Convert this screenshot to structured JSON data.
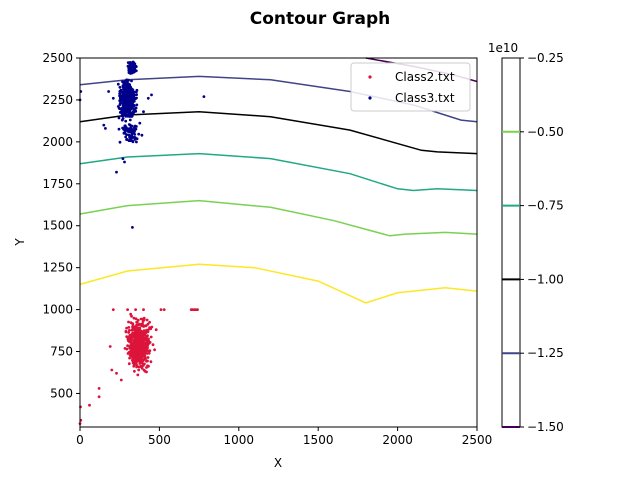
{
  "chart_data": {
    "type": "scatter",
    "title": "Contour Graph",
    "xlabel": "X",
    "ylabel": "Y",
    "xlim": [
      0,
      2500
    ],
    "ylim": [
      300,
      2500
    ],
    "xticks": [
      0,
      500,
      1000,
      1500,
      2000,
      2500
    ],
    "yticks": [
      500,
      750,
      1000,
      1250,
      1500,
      1750,
      2000,
      2250,
      2500
    ],
    "grid": false,
    "legend_position": "top-right",
    "series": [
      {
        "name": "Class2.txt",
        "color": "#dc143c",
        "clusters": [
          {
            "x": [
              270,
              470
            ],
            "y": [
              600,
              1000
            ],
            "count": 420
          },
          {
            "x": [
              300,
              420
            ],
            "y": [
              640,
              880
            ],
            "count": 260
          }
        ],
        "points": [
          {
            "x": 0,
            "y": 320
          },
          {
            "x": 5,
            "y": 340
          },
          {
            "x": 3,
            "y": 420
          },
          {
            "x": 60,
            "y": 430
          },
          {
            "x": 120,
            "y": 480
          },
          {
            "x": 120,
            "y": 530
          },
          {
            "x": 200,
            "y": 640
          },
          {
            "x": 190,
            "y": 780
          },
          {
            "x": 210,
            "y": 1000
          },
          {
            "x": 300,
            "y": 1000
          },
          {
            "x": 350,
            "y": 1000
          },
          {
            "x": 400,
            "y": 1000
          },
          {
            "x": 510,
            "y": 1000
          },
          {
            "x": 530,
            "y": 1000
          },
          {
            "x": 700,
            "y": 1000
          },
          {
            "x": 710,
            "y": 1000
          },
          {
            "x": 720,
            "y": 1000
          },
          {
            "x": 730,
            "y": 1000
          },
          {
            "x": 740,
            "y": 1000
          },
          {
            "x": 480,
            "y": 880
          },
          {
            "x": 470,
            "y": 760
          },
          {
            "x": 230,
            "y": 620
          },
          {
            "x": 260,
            "y": 580
          }
        ]
      },
      {
        "name": "Class3.txt",
        "color": "#00008b",
        "clusters": [
          {
            "x": [
              230,
              370
            ],
            "y": [
              2100,
              2400
            ],
            "count": 420
          },
          {
            "x": [
              290,
              360
            ],
            "y": [
              2390,
              2500
            ],
            "count": 90
          },
          {
            "x": [
              230,
              400
            ],
            "y": [
              1950,
              2150
            ],
            "count": 80
          }
        ],
        "points": [
          {
            "x": 0,
            "y": 2250
          },
          {
            "x": 5,
            "y": 2300
          },
          {
            "x": 150,
            "y": 2100
          },
          {
            "x": 160,
            "y": 2080
          },
          {
            "x": 180,
            "y": 2300
          },
          {
            "x": 210,
            "y": 2260
          },
          {
            "x": 230,
            "y": 1820
          },
          {
            "x": 270,
            "y": 1900
          },
          {
            "x": 280,
            "y": 1880
          },
          {
            "x": 330,
            "y": 1490
          },
          {
            "x": 430,
            "y": 2260
          },
          {
            "x": 450,
            "y": 2280
          },
          {
            "x": 780,
            "y": 2270
          },
          {
            "x": 400,
            "y": 2180
          },
          {
            "x": 390,
            "y": 2040
          }
        ]
      }
    ],
    "contours": {
      "levels": [
        -1.5,
        -1.25,
        -1.0,
        -0.75,
        -0.5,
        -0.25
      ],
      "colors": {
        "-1.5": "#440154",
        "-1.25": "#414487",
        "-1.0": "#2a788e",
        "-0.75": "#22a884",
        "-0.5": "#7ad151",
        "-0.25": "#fde725"
      },
      "lines": [
        {
          "level": -1.5,
          "points": [
            [
              1800,
              2500
            ],
            [
              2100,
              2450
            ],
            [
              2350,
              2400
            ],
            [
              2500,
              2360
            ]
          ]
        },
        {
          "level": -1.25,
          "points": [
            [
              0,
              2340
            ],
            [
              300,
              2370
            ],
            [
              750,
              2390
            ],
            [
              1200,
              2370
            ],
            [
              1700,
              2300
            ],
            [
              2100,
              2220
            ],
            [
              2400,
              2130
            ],
            [
              2500,
              2120
            ]
          ]
        },
        {
          "level": -1.0,
          "points": [
            [
              0,
              2120
            ],
            [
              300,
              2160
            ],
            [
              750,
              2180
            ],
            [
              1200,
              2150
            ],
            [
              1700,
              2070
            ],
            [
              2150,
              1950
            ],
            [
              2250,
              1940
            ],
            [
              2500,
              1930
            ]
          ]
        },
        {
          "level": -0.75,
          "points": [
            [
              0,
              1870
            ],
            [
              300,
              1910
            ],
            [
              750,
              1930
            ],
            [
              1200,
              1900
            ],
            [
              1700,
              1810
            ],
            [
              2000,
              1720
            ],
            [
              2100,
              1710
            ],
            [
              2250,
              1720
            ],
            [
              2500,
              1710
            ]
          ]
        },
        {
          "level": -0.5,
          "points": [
            [
              0,
              1570
            ],
            [
              300,
              1620
            ],
            [
              750,
              1650
            ],
            [
              1200,
              1610
            ],
            [
              1600,
              1530
            ],
            [
              1950,
              1440
            ],
            [
              2050,
              1450
            ],
            [
              2300,
              1460
            ],
            [
              2500,
              1450
            ]
          ]
        },
        {
          "level": -0.25,
          "points": [
            [
              0,
              1150
            ],
            [
              300,
              1230
            ],
            [
              750,
              1270
            ],
            [
              1100,
              1250
            ],
            [
              1500,
              1170
            ],
            [
              1800,
              1040
            ],
            [
              2000,
              1100
            ],
            [
              2300,
              1130
            ],
            [
              2500,
              1110
            ]
          ]
        }
      ]
    },
    "colorbar": {
      "min": -1.5,
      "max": -0.25,
      "exponent_label": "1e10",
      "tick_labels": [
        "−0.25",
        "−0.50",
        "−0.75",
        "−1.00",
        "−1.25",
        "−1.50"
      ],
      "tick_values": [
        -0.25,
        -0.5,
        -0.75,
        -1.0,
        -1.25,
        -1.5
      ]
    }
  }
}
